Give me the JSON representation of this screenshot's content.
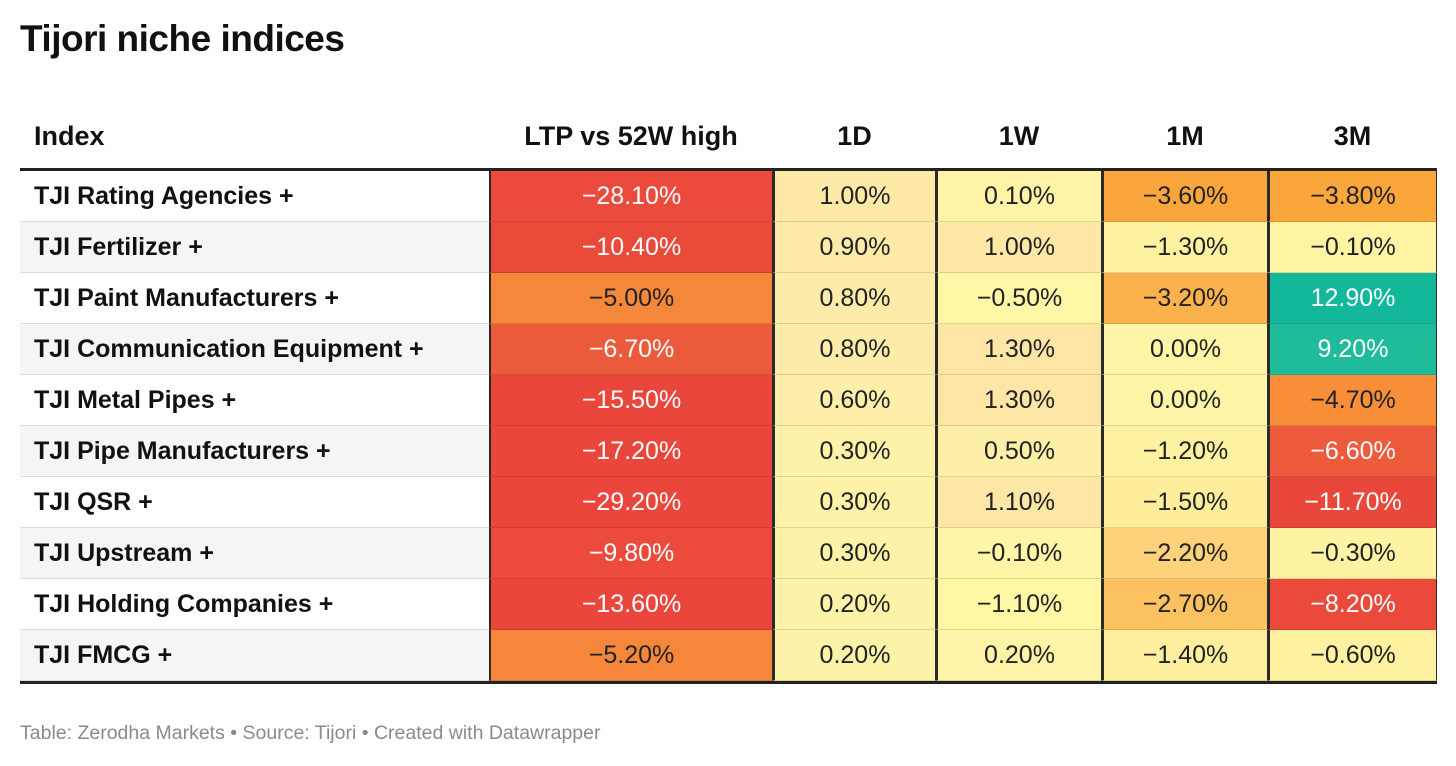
{
  "header": {
    "title": "Tijori niche indices"
  },
  "table": {
    "columns": [
      "Index",
      "LTP vs 52W high",
      "1D",
      "1W",
      "1M",
      "3M"
    ],
    "rows": [
      [
        "TJI Rating Agencies +",
        "−28.10%",
        "1.00%",
        "0.10%",
        "−3.60%",
        "−3.80%"
      ],
      [
        "TJI Fertilizer +",
        "−10.40%",
        "0.90%",
        "1.00%",
        "−1.30%",
        "−0.10%"
      ],
      [
        "TJI Paint Manufacturers +",
        "−5.00%",
        "0.80%",
        "−0.50%",
        "−3.20%",
        "12.90%"
      ],
      [
        "TJI Communication Equipment +",
        "−6.70%",
        "0.80%",
        "1.30%",
        "0.00%",
        "9.20%"
      ],
      [
        "TJI Metal Pipes +",
        "−15.50%",
        "0.60%",
        "1.30%",
        "0.00%",
        "−4.70%"
      ],
      [
        "TJI Pipe Manufacturers +",
        "−17.20%",
        "0.30%",
        "0.50%",
        "−1.20%",
        "−6.60%"
      ],
      [
        "TJI QSR +",
        "−29.20%",
        "0.30%",
        "1.10%",
        "−1.50%",
        "−11.70%"
      ],
      [
        "TJI Upstream +",
        "−9.80%",
        "0.30%",
        "−0.10%",
        "−2.20%",
        "−0.30%"
      ],
      [
        "TJI Holding Companies +",
        "−13.60%",
        "0.20%",
        "−1.10%",
        "−2.70%",
        "−8.20%"
      ],
      [
        "TJI FMCG +",
        "−5.20%",
        "0.20%",
        "0.20%",
        "−1.40%",
        "−0.60%"
      ]
    ],
    "colors": [
      [
        null,
        "#ec4a3c",
        "#fde9a6",
        "#fef3a6",
        "#fba63c",
        "#fba63a"
      ],
      [
        null,
        "#ea4a3a",
        "#fdeaa8",
        "#fde8a6",
        "#fef2a0",
        "#fef4a4"
      ],
      [
        null,
        "#f5873a",
        "#fdebaa",
        "#fef7a6",
        "#fcb24c",
        "#13b89a"
      ],
      [
        null,
        "#ec5a3c",
        "#fdebaa",
        "#fde5a6",
        "#fef6a6",
        "#1fbc9c"
      ],
      [
        null,
        "#ea463b",
        "#fdeeaa",
        "#fde5a6",
        "#fef6a6",
        "#f88f38"
      ],
      [
        null,
        "#ea463b",
        "#fdf2a8",
        "#fdeea8",
        "#fef2a0",
        "#ee5a3c"
      ],
      [
        null,
        "#ea463b",
        "#fdf2a8",
        "#fde7a6",
        "#feee9c",
        "#ea473b"
      ],
      [
        null,
        "#ec4a3c",
        "#fdf2a8",
        "#fef5a6",
        "#fdd27a",
        "#fef3a2"
      ],
      [
        null,
        "#ea463b",
        "#fdf3a8",
        "#fef8a4",
        "#fcc260",
        "#ea493b"
      ],
      [
        null,
        "#f5863a",
        "#fdf3a8",
        "#fef3a6",
        "#feef9e",
        "#fef1a0"
      ]
    ]
  },
  "footer": "Table: Zerodha Markets • Source: Tijori • Created with Datawrapper"
}
